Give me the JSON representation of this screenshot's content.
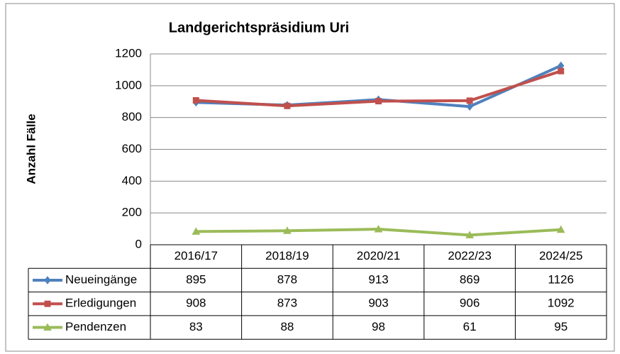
{
  "chart_data": {
    "type": "line",
    "title": "Landgerichtspräsidium Uri",
    "y_label": "Anzahl Fälle",
    "categories": [
      "2016/17",
      "2018/19",
      "2020/21",
      "2022/23",
      "2024/25"
    ],
    "series": [
      {
        "name": "Neueingänge",
        "color": "#4f81bd",
        "marker": "diamond",
        "values": [
          895,
          878,
          913,
          869,
          1126
        ]
      },
      {
        "name": "Erledigungen",
        "color": "#c0504d",
        "marker": "square",
        "values": [
          908,
          873,
          903,
          906,
          1092
        ]
      },
      {
        "name": "Pendenzen",
        "color": "#9bbb59",
        "marker": "triangle",
        "values": [
          83,
          88,
          98,
          61,
          95
        ]
      }
    ],
    "ylim": [
      0,
      1200
    ],
    "yticks": [
      0,
      200,
      400,
      600,
      800,
      1000,
      1200
    ],
    "grid": true,
    "data_table": true
  }
}
